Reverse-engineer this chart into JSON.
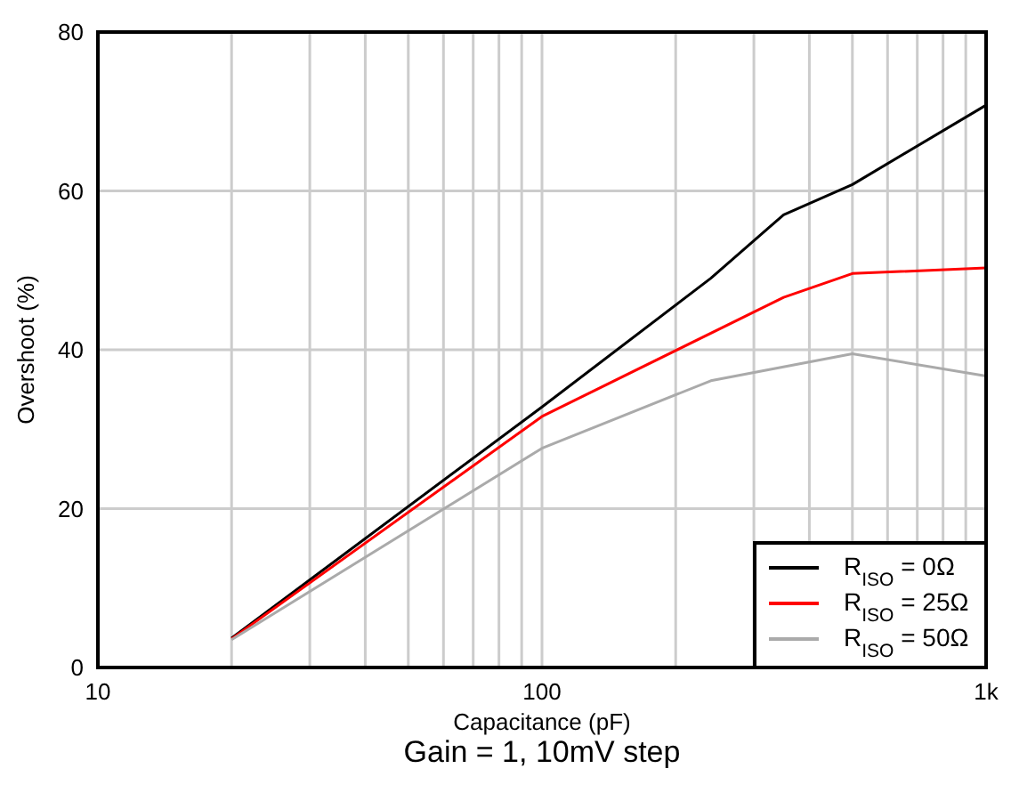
{
  "chart_data": {
    "type": "line",
    "xlabel": "Capacitance (pF)",
    "ylabel": "Overshoot (%)",
    "annotations": [
      "Gain = 1, 10mV step"
    ],
    "log": "x",
    "xlim": [
      10,
      1000
    ],
    "ylim": [
      0,
      80
    ],
    "xticks": [
      10,
      {
        "value": 20,
        "label": null
      },
      {
        "value": 30,
        "label": null
      },
      {
        "value": 40,
        "label": null
      },
      {
        "value": 50,
        "label": null
      },
      {
        "value": 60,
        "label": null
      },
      {
        "value": 70,
        "label": null
      },
      {
        "value": 80,
        "label": null
      },
      {
        "value": 90,
        "label": null
      },
      100,
      {
        "value": 200,
        "label": null
      },
      {
        "value": 300,
        "label": null
      },
      {
        "value": 400,
        "label": null
      },
      {
        "value": 500,
        "label": null
      },
      {
        "value": 600,
        "label": null
      },
      {
        "value": 700,
        "label": null
      },
      {
        "value": 800,
        "label": null
      },
      {
        "value": 900,
        "label": null
      },
      {
        "value": 1000,
        "label": "1k"
      }
    ],
    "yticks": [
      0,
      20,
      40,
      60,
      80
    ],
    "grid": true,
    "legend": "bottom right",
    "line_style": "solid",
    "marker": "none",
    "series": [
      {
        "name": "R$_{ISO}$ = 0Ω",
        "color": "#000000",
        "x": [
          20,
          100,
          240,
          350,
          500,
          1000
        ],
        "values": [
          3.7,
          32.8,
          49,
          57,
          60.8,
          70.8
        ]
      },
      {
        "name": "R$_{ISO}$ = 25Ω",
        "color": "#ff0000",
        "x": [
          20,
          100,
          350,
          500,
          1000
        ],
        "values": [
          3.6,
          31.6,
          46.6,
          49.6,
          50.3
        ]
      },
      {
        "name": "R$_{ISO}$ = 50Ω",
        "color": "#aaaaaa",
        "x": [
          20,
          100,
          240,
          500,
          1000
        ],
        "values": [
          3.5,
          27.6,
          36.1,
          39.5,
          36.7
        ]
      }
    ]
  }
}
